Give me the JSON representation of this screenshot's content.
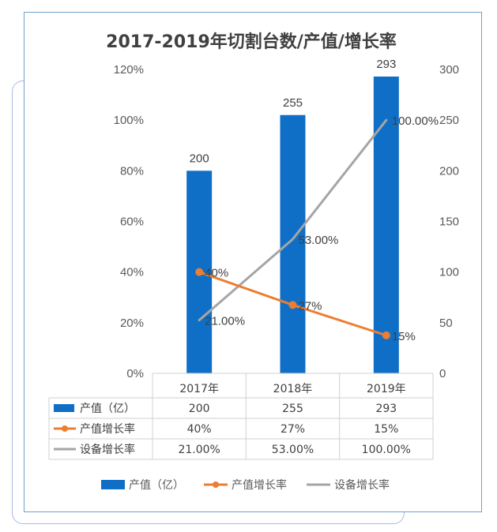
{
  "chart_data": {
    "type": "bar",
    "title": "2017-2019年切割台数/产值/增长率",
    "categories": [
      "2017年",
      "2018年",
      "2019年"
    ],
    "left_axis": {
      "min": 0,
      "max": 120,
      "step": 20,
      "ticks": [
        "0%",
        "20%",
        "40%",
        "60%",
        "80%",
        "100%",
        "120%"
      ]
    },
    "right_axis": {
      "min": 0,
      "max": 300,
      "step": 50,
      "ticks": [
        "0",
        "50",
        "100",
        "150",
        "200",
        "250",
        "300"
      ]
    },
    "series": [
      {
        "name": "产值（亿）",
        "kind": "bar",
        "axis": "right",
        "color": "#0f6fc6",
        "values": [
          200,
          255,
          293
        ],
        "labels": [
          "200",
          "255",
          "293"
        ]
      },
      {
        "name": "产值增长率",
        "kind": "line",
        "axis": "left",
        "color": "#ed7d31",
        "markers": true,
        "values": [
          40,
          27,
          15
        ],
        "labels": [
          "40%",
          "27%",
          "15%"
        ]
      },
      {
        "name": "设备增长率",
        "kind": "line",
        "axis": "left",
        "color": "#a5a5a5",
        "markers": false,
        "values": [
          21,
          53,
          100
        ],
        "labels": [
          "21.00%",
          "53.00%",
          "100.00%"
        ]
      }
    ],
    "table": {
      "rows": [
        {
          "name": "产值（亿）",
          "cells": [
            "200",
            "255",
            "293"
          ]
        },
        {
          "name": "产值增长率",
          "cells": [
            "40%",
            "27%",
            "15%"
          ]
        },
        {
          "name": "设备增长率",
          "cells": [
            "21.00%",
            "53.00%",
            "100.00%"
          ]
        }
      ]
    },
    "legend_placement": "bottom",
    "grid": false
  }
}
